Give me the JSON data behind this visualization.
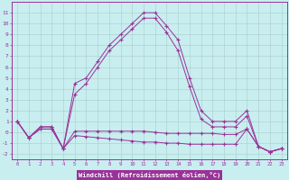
{
  "xlabel": "Windchill (Refroidissement éolien,°C)",
  "x": [
    0,
    1,
    2,
    3,
    4,
    5,
    6,
    7,
    8,
    9,
    10,
    11,
    12,
    13,
    14,
    15,
    16,
    17,
    18,
    19,
    20,
    21,
    22,
    23
  ],
  "line1": [
    1.0,
    -0.5,
    0.5,
    0.5,
    -1.5,
    4.5,
    5.0,
    6.5,
    8.0,
    9.0,
    10.0,
    11.0,
    11.0,
    9.8,
    8.5,
    5.0,
    2.0,
    1.0,
    1.0,
    1.0,
    2.0,
    -1.3,
    -1.8,
    -1.5
  ],
  "line2": [
    1.0,
    -0.5,
    0.5,
    0.5,
    -1.5,
    3.5,
    4.5,
    6.0,
    7.5,
    8.5,
    9.5,
    10.5,
    10.5,
    9.2,
    7.5,
    4.2,
    1.2,
    0.5,
    0.5,
    0.5,
    1.5,
    -1.3,
    -1.8,
    -1.5
  ],
  "line3": [
    1.0,
    -0.5,
    0.3,
    0.3,
    -1.5,
    0.1,
    0.1,
    0.1,
    0.1,
    0.1,
    0.1,
    0.1,
    0.0,
    -0.1,
    -0.1,
    -0.1,
    -0.1,
    -0.1,
    -0.2,
    -0.2,
    0.3,
    -1.3,
    -1.8,
    -1.5
  ],
  "line4": [
    1.0,
    -0.5,
    0.3,
    0.3,
    -1.5,
    -0.3,
    -0.4,
    -0.5,
    -0.6,
    -0.7,
    -0.8,
    -0.9,
    -0.9,
    -1.0,
    -1.0,
    -1.1,
    -1.1,
    -1.1,
    -1.1,
    -1.1,
    0.3,
    -1.3,
    -1.8,
    -1.5
  ],
  "line_color": "#993399",
  "bg_color": "#c8eef0",
  "grid_color": "#aacccc",
  "xlabel_bg": "#993399",
  "xlabel_fg": "#ffffff",
  "ylim": [
    -2.5,
    12.0
  ],
  "xlim": [
    -0.5,
    23.5
  ],
  "yticks": [
    -2,
    -1,
    0,
    1,
    2,
    3,
    4,
    5,
    6,
    7,
    8,
    9,
    10,
    11
  ],
  "xticks": [
    0,
    1,
    2,
    3,
    4,
    5,
    6,
    7,
    8,
    9,
    10,
    11,
    12,
    13,
    14,
    15,
    16,
    17,
    18,
    19,
    20,
    21,
    22,
    23
  ]
}
